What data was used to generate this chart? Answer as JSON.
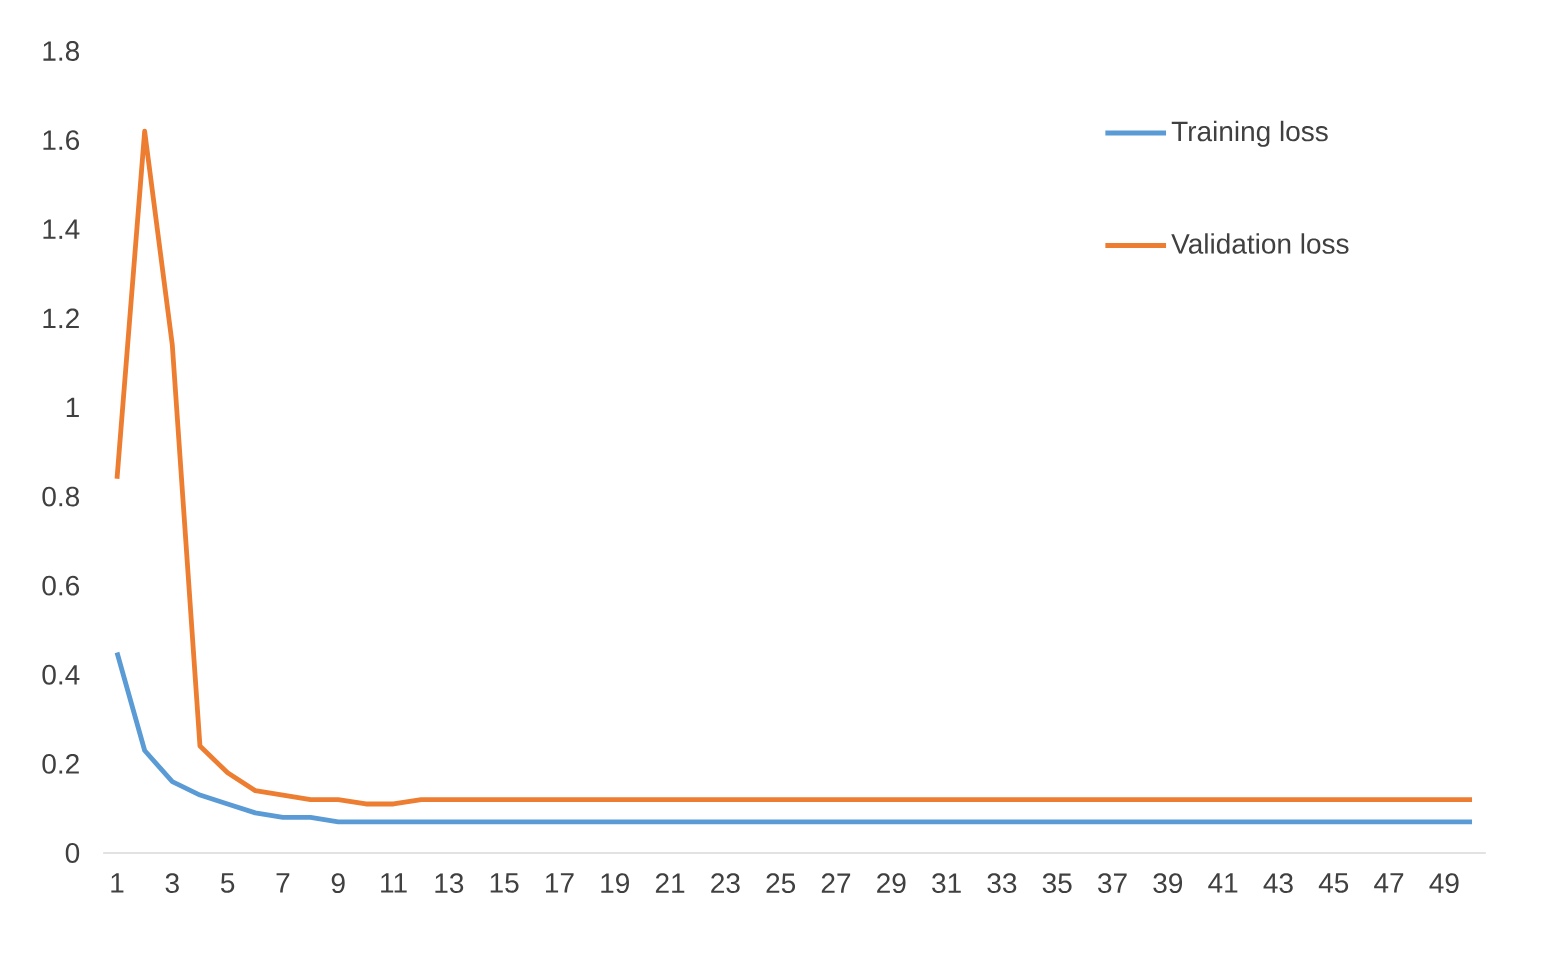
{
  "chart_data": {
    "type": "line",
    "categories": [
      "1",
      null,
      "3",
      null,
      "5",
      null,
      "7",
      null,
      "9",
      null,
      "11",
      null,
      "13",
      null,
      "15",
      null,
      "17",
      null,
      "19",
      null,
      "21",
      null,
      "23",
      null,
      "25",
      null,
      "27",
      null,
      "29",
      null,
      "31",
      null,
      "33",
      null,
      "35",
      null,
      "37",
      null,
      "39",
      null,
      "41",
      null,
      "43",
      null,
      "45",
      null,
      "47",
      null,
      "49",
      null
    ],
    "series": [
      {
        "name": "Training loss",
        "color": "#5b9bd5",
        "values": [
          0.45,
          0.23,
          0.16,
          0.13,
          0.11,
          0.09,
          0.08,
          0.08,
          0.07,
          0.07,
          0.07,
          0.07,
          0.07,
          0.07,
          0.07,
          0.07,
          0.07,
          0.07,
          0.07,
          0.07,
          0.07,
          0.07,
          0.07,
          0.07,
          0.07,
          0.07,
          0.07,
          0.07,
          0.07,
          0.07,
          0.07,
          0.07,
          0.07,
          0.07,
          0.07,
          0.07,
          0.07,
          0.07,
          0.07,
          0.07,
          0.07,
          0.07,
          0.07,
          0.07,
          0.07,
          0.07,
          0.07,
          0.07,
          0.07,
          0.07
        ]
      },
      {
        "name": "Validation loss",
        "color": "#ed7d31",
        "values": [
          0.84,
          1.62,
          1.14,
          0.24,
          0.18,
          0.14,
          0.13,
          0.12,
          0.12,
          0.11,
          0.11,
          0.12,
          0.12,
          0.12,
          0.12,
          0.12,
          0.12,
          0.12,
          0.12,
          0.12,
          0.12,
          0.12,
          0.12,
          0.12,
          0.12,
          0.12,
          0.12,
          0.12,
          0.12,
          0.12,
          0.12,
          0.12,
          0.12,
          0.12,
          0.12,
          0.12,
          0.12,
          0.12,
          0.12,
          0.12,
          0.12,
          0.12,
          0.12,
          0.12,
          0.12,
          0.12,
          0.12,
          0.12,
          0.12,
          0.12
        ]
      }
    ],
    "ylim": [
      0,
      1.8
    ],
    "yticks": [
      0,
      0.2,
      0.4,
      0.6,
      0.8,
      1,
      1.2,
      1.4,
      1.6,
      1.8
    ],
    "legend": "right"
  }
}
